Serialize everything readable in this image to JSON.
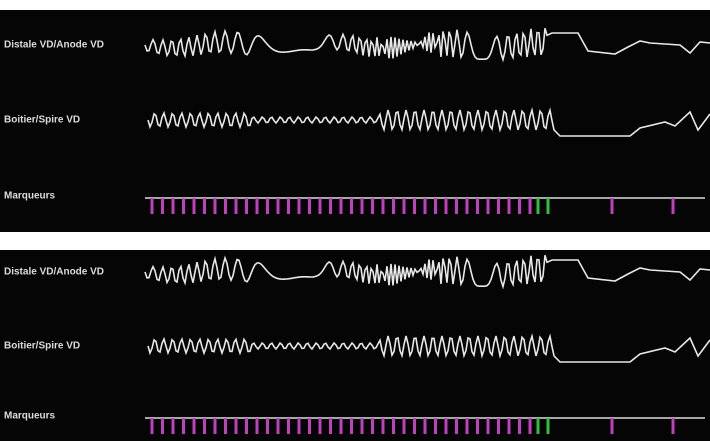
{
  "panels": [
    {
      "channels": [
        "Distale VD/Anode VD",
        "Boitier/Spire VD",
        "Marqueurs"
      ]
    },
    {
      "channels": [
        "Distale VD/Anode VD",
        "Boitier/Spire VD",
        "Marqueurs"
      ]
    }
  ]
}
